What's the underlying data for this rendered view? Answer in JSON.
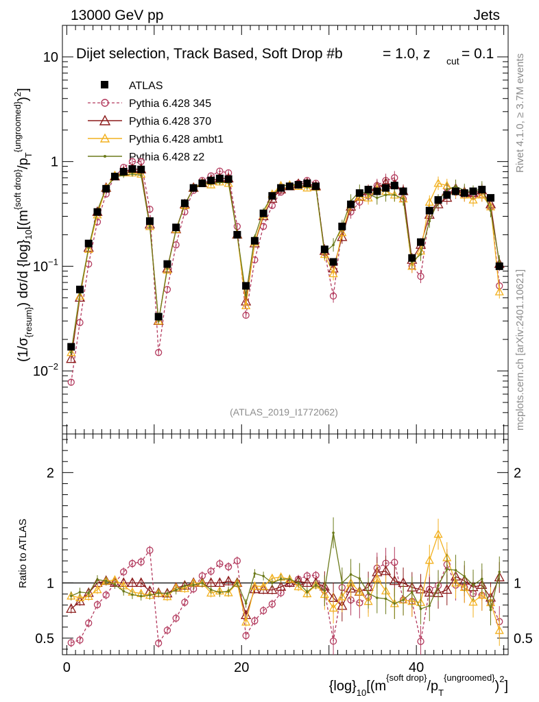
{
  "header": {
    "energy_label": "13000 GeV pp",
    "process_label": "Jets"
  },
  "side_labels": {
    "rivet": "Rivet 4.1.0, ≥ 3.7M events",
    "mcplots": "mcplots.cern.ch [arXiv:2401.10621]"
  },
  "chart_data": [
    {
      "type": "scatter",
      "title": "Dijet selection, Track Based, Soft Drop #b",
      "title_suffix": "= 1.0, z",
      "title_sub": "cut",
      "title_end": "= 0.1",
      "watermark": "(ATLAS_2019_I1772062)",
      "ylabel_parts": [
        "(1/σ",
        "{resum}",
        ") dσ/d {log}",
        "10",
        "[(m",
        "{soft drop}",
        "/p",
        "T",
        "{ungroomed}",
        ")",
        "2",
        "]"
      ],
      "yscale": "log",
      "ylim": [
        0.0025,
        20
      ],
      "xlim": [
        -0.5,
        50.5
      ],
      "y_tick_labels": [
        {
          "v": 0.01,
          "base": "10",
          "exp": "−2"
        },
        {
          "v": 0.1,
          "base": "10",
          "exp": "−1"
        },
        {
          "v": 1,
          "base": "1",
          "exp": ""
        },
        {
          "v": 10,
          "base": "10",
          "exp": ""
        }
      ],
      "legend": [
        "ATLAS",
        "Pythia 6.428 345",
        "Pythia 6.428 370",
        "Pythia 6.428 ambt1",
        "Pythia 6.428 z2"
      ],
      "x": [
        0.5,
        1.5,
        2.5,
        3.5,
        4.5,
        5.5,
        6.5,
        7.5,
        8.5,
        9.5,
        10.5,
        11.5,
        12.5,
        13.5,
        14.5,
        15.5,
        16.5,
        17.5,
        18.5,
        19.5,
        20.5,
        21.5,
        22.5,
        23.5,
        24.5,
        25.5,
        26.5,
        27.5,
        28.5,
        29.5,
        30.5,
        31.5,
        32.5,
        33.5,
        34.5,
        35.5,
        36.5,
        37.5,
        38.5,
        39.5,
        40.5,
        41.5,
        42.5,
        43.5,
        44.5,
        45.5,
        46.5,
        47.5,
        48.5,
        49.5
      ],
      "series": [
        {
          "name": "ATLAS",
          "values": [
            0.017,
            0.06,
            0.165,
            0.33,
            0.55,
            0.72,
            0.8,
            0.85,
            0.84,
            0.27,
            0.033,
            0.105,
            0.235,
            0.4,
            0.56,
            0.62,
            0.66,
            0.69,
            0.68,
            0.2,
            0.065,
            0.175,
            0.32,
            0.47,
            0.56,
            0.58,
            0.6,
            0.62,
            0.58,
            0.145,
            0.11,
            0.24,
            0.39,
            0.5,
            0.54,
            0.52,
            0.56,
            0.59,
            0.52,
            0.12,
            0.17,
            0.34,
            0.43,
            0.48,
            0.52,
            0.5,
            0.52,
            0.54,
            0.45,
            0.1
          ]
        },
        {
          "name": "Pythia 6.428 345",
          "values": [
            0.0078,
            0.029,
            0.105,
            0.265,
            0.49,
            0.72,
            0.88,
            1.0,
            1.0,
            0.35,
            0.015,
            0.06,
            0.16,
            0.33,
            0.53,
            0.66,
            0.73,
            0.81,
            0.78,
            0.24,
            0.034,
            0.115,
            0.24,
            0.38,
            0.51,
            0.58,
            0.62,
            0.66,
            0.62,
            0.135,
            0.052,
            0.23,
            0.33,
            0.41,
            0.47,
            0.59,
            0.66,
            0.7,
            0.44,
            0.1,
            0.08,
            0.32,
            0.42,
            0.56,
            0.51,
            0.48,
            0.47,
            0.48,
            0.37,
            0.065
          ]
        },
        {
          "name": "Pythia 6.428 370",
          "values": [
            0.013,
            0.05,
            0.15,
            0.33,
            0.56,
            0.72,
            0.8,
            0.85,
            0.84,
            0.25,
            0.03,
            0.095,
            0.225,
            0.39,
            0.56,
            0.62,
            0.66,
            0.69,
            0.69,
            0.2,
            0.046,
            0.165,
            0.3,
            0.44,
            0.54,
            0.58,
            0.61,
            0.62,
            0.58,
            0.14,
            0.095,
            0.19,
            0.37,
            0.46,
            0.52,
            0.57,
            0.62,
            0.6,
            0.52,
            0.115,
            0.16,
            0.31,
            0.39,
            0.45,
            0.55,
            0.51,
            0.5,
            0.53,
            0.39,
            0.105
          ]
        },
        {
          "name": "Pythia 6.428 ambt1",
          "values": [
            0.015,
            0.052,
            0.145,
            0.31,
            0.56,
            0.74,
            0.78,
            0.78,
            0.76,
            0.24,
            0.03,
            0.092,
            0.225,
            0.38,
            0.56,
            0.62,
            0.6,
            0.64,
            0.62,
            0.2,
            0.042,
            0.17,
            0.31,
            0.49,
            0.59,
            0.6,
            0.58,
            0.56,
            0.57,
            0.13,
            0.085,
            0.21,
            0.39,
            0.46,
            0.45,
            0.54,
            0.52,
            0.48,
            0.44,
            0.1,
            0.14,
            0.41,
            0.62,
            0.59,
            0.52,
            0.48,
            0.43,
            0.48,
            0.37,
            0.057
          ]
        },
        {
          "name": "Pythia 6.428 z2",
          "values": [
            0.015,
            0.055,
            0.15,
            0.34,
            0.56,
            0.71,
            0.74,
            0.76,
            0.74,
            0.24,
            0.03,
            0.095,
            0.22,
            0.39,
            0.55,
            0.62,
            0.62,
            0.63,
            0.63,
            0.2,
            0.053,
            0.19,
            0.34,
            0.47,
            0.58,
            0.6,
            0.6,
            0.57,
            0.57,
            0.135,
            0.16,
            0.24,
            0.42,
            0.52,
            0.49,
            0.45,
            0.48,
            0.48,
            0.44,
            0.11,
            0.13,
            0.27,
            0.42,
            0.54,
            0.58,
            0.53,
            0.51,
            0.56,
            0.34,
            0.11
          ]
        }
      ]
    },
    {
      "type": "scatter",
      "ylabel": "Ratio to ATLAS",
      "xlabel_parts": [
        "{log}",
        "10",
        "[(m",
        "{soft drop}",
        "/p",
        "T",
        "{ungroomed}",
        ")",
        "2",
        "]"
      ],
      "ylim": [
        0.35,
        2.35
      ],
      "xlim": [
        -0.5,
        50.5
      ],
      "y_tick_labels": [
        "0.5",
        "1",
        "2"
      ],
      "x_tick_labels": [
        "0",
        "20",
        "40"
      ],
      "reference_line": 1
    }
  ],
  "colors": {
    "atlas": "#000000",
    "p345": "#b2385c",
    "p370": "#8b1a1a",
    "ambt1": "#f2b01e",
    "z2": "#6b7a1a"
  }
}
